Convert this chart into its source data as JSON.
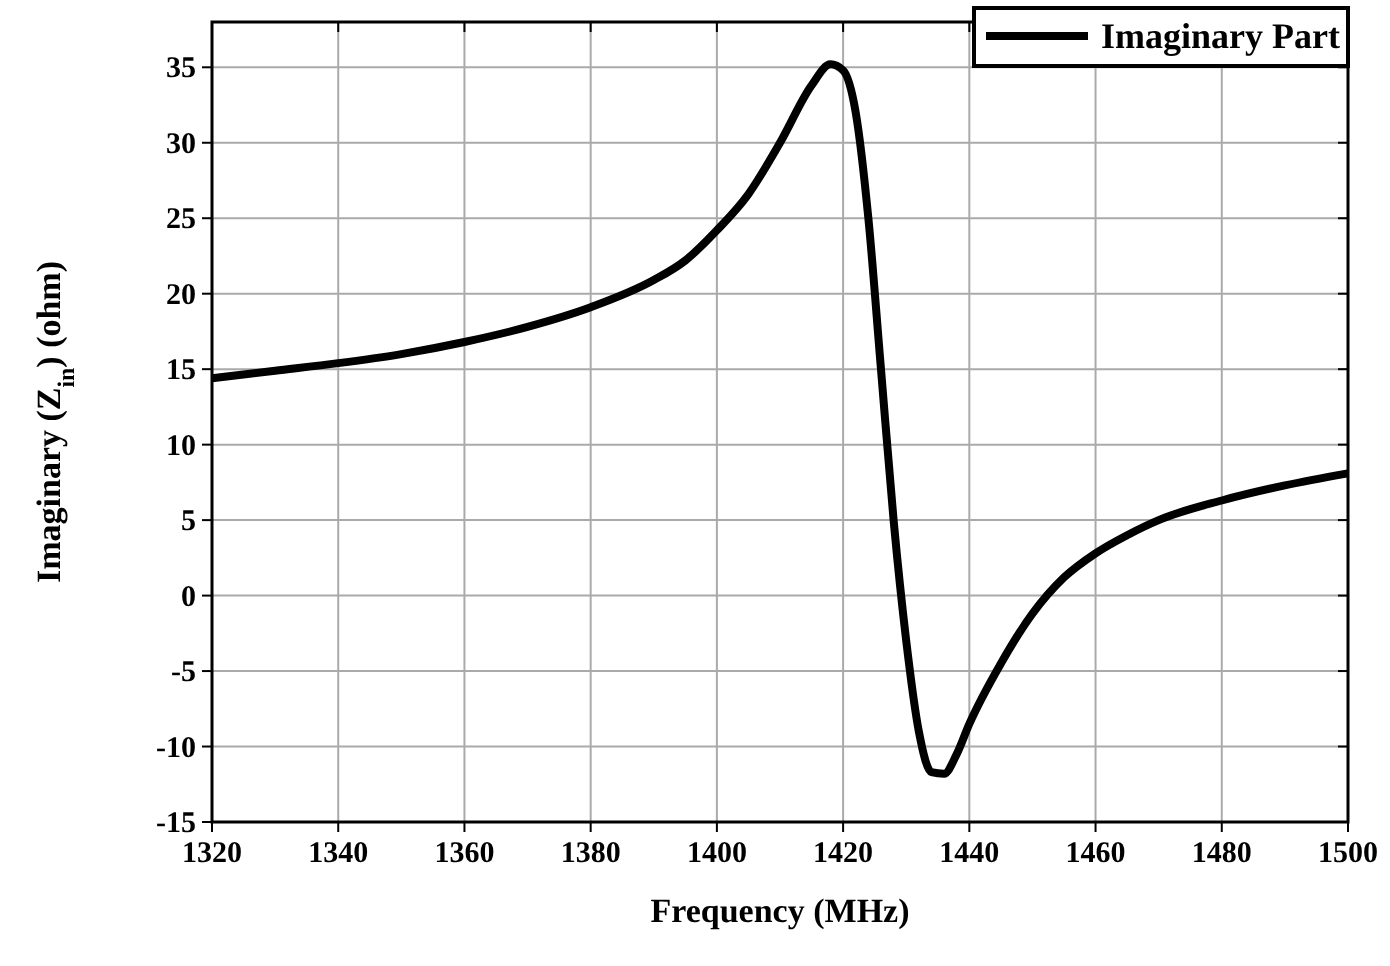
{
  "chart_data": {
    "type": "line",
    "xlabel": "Frequency (MHz)",
    "ylabel": "Imaginary (Z$_{in}$) (ohm)",
    "x": [
      1320,
      1330,
      1340,
      1350,
      1360,
      1370,
      1380,
      1390,
      1395,
      1400,
      1405,
      1410,
      1415,
      1418,
      1420,
      1422,
      1424,
      1426,
      1428,
      1430,
      1432,
      1434,
      1436,
      1438,
      1440,
      1445,
      1450,
      1455,
      1460,
      1465,
      1470,
      1480,
      1490,
      1500
    ],
    "series": [
      {
        "name": "Imaginary Part",
        "color": "#000000",
        "values": [
          14.4,
          14.9,
          15.4,
          16.0,
          16.8,
          17.8,
          19.1,
          20.9,
          22.2,
          24.2,
          26.6,
          30.0,
          33.8,
          35.2,
          34.8,
          32,
          25,
          15,
          5,
          -3,
          -9,
          -11.7,
          -11.8,
          -10.5,
          -8.5,
          -4.5,
          -1.2,
          1.2,
          2.8,
          4.0,
          5.0,
          6.3,
          7.3,
          8.1
        ]
      }
    ],
    "xlim": [
      1320,
      1500
    ],
    "xticks": [
      1320,
      1340,
      1360,
      1380,
      1400,
      1420,
      1440,
      1460,
      1480,
      1500
    ],
    "ylim": [
      -15,
      38
    ],
    "yticks": [
      -15,
      -10,
      -5,
      0,
      5,
      10,
      15,
      20,
      25,
      30,
      35
    ],
    "grid": true,
    "legend": "top right",
    "marker": "none",
    "line_style": "solid"
  }
}
